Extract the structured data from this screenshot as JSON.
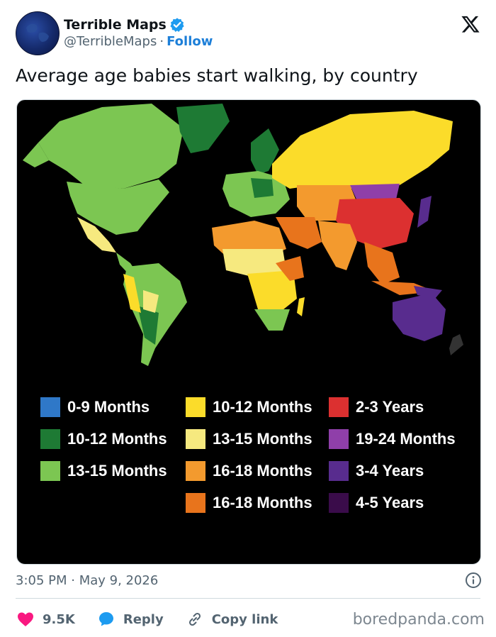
{
  "author": {
    "display_name": "Terrible Maps",
    "handle": "@TerribleMaps",
    "separator": "·",
    "follow_label": "Follow"
  },
  "tweet": {
    "text": "Average age babies start walking, by country",
    "timestamp": "3:05 PM · May 9, 2026"
  },
  "map": {
    "legend": [
      {
        "label": "0-9 Months",
        "color": "#2f78c8"
      },
      {
        "label": "10-12 Months",
        "color": "#1e7a34"
      },
      {
        "label": "13-15 Months",
        "color": "#7cc652"
      },
      {
        "label": "10-12 Months",
        "color": "#fbdc2a"
      },
      {
        "label": "13-15 Months",
        "color": "#f6e97f"
      },
      {
        "label": "16-18 Months",
        "color": "#f39a2e"
      },
      {
        "label": "16-18 Months",
        "color": "#e8741c"
      },
      {
        "label": "2-3 Years",
        "color": "#dc3030"
      },
      {
        "label": "19-24 Months",
        "color": "#8f3fa9"
      },
      {
        "label": "3-4 Years",
        "color": "#582c8e"
      },
      {
        "label": "4-5 Years",
        "color": "#3a0c4a"
      }
    ]
  },
  "actions": {
    "like_count": "9.5K",
    "reply_label": "Reply",
    "copy_label": "Copy link"
  },
  "watermark": "boredpanda.com",
  "colors": {
    "accent": "#1d7fd8",
    "like": "#f91880",
    "verified": "#1d9bf0"
  }
}
